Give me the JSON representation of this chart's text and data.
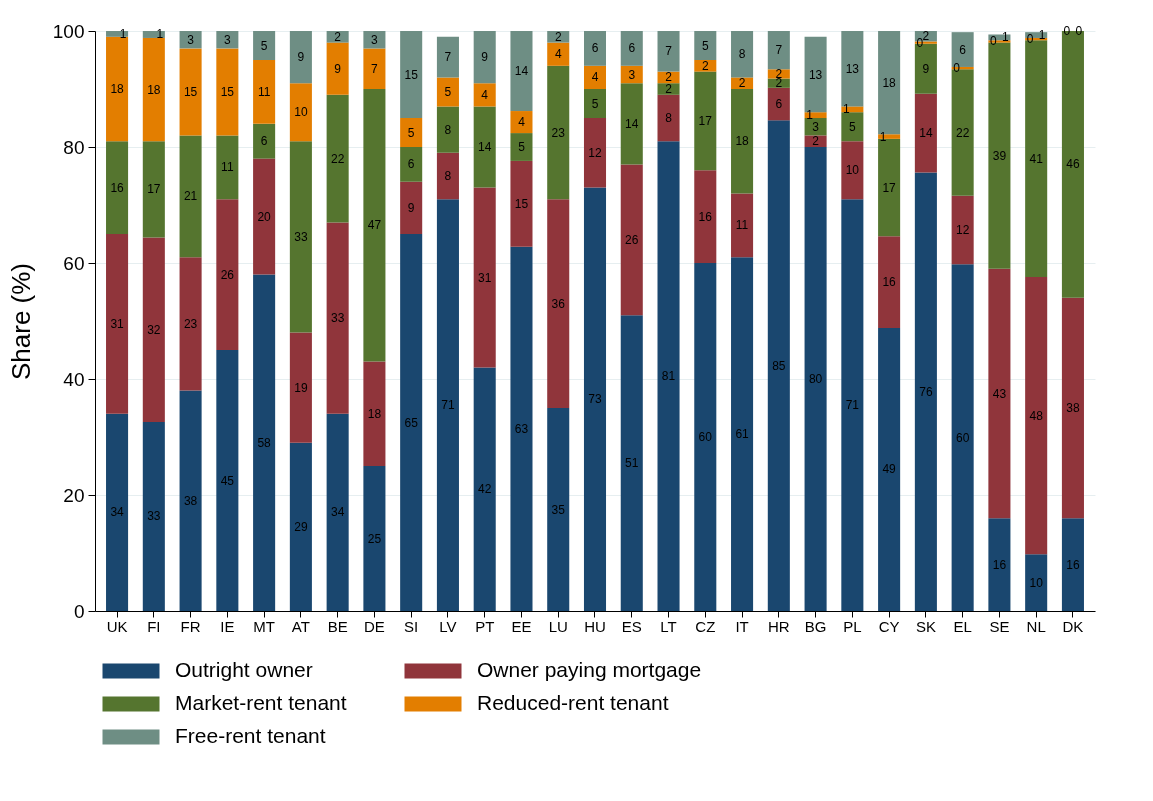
{
  "chart_data": {
    "type": "bar",
    "stacked": true,
    "ylabel": "Share (%)",
    "ylim": [
      0,
      100
    ],
    "yticks": [
      0,
      20,
      40,
      60,
      80,
      100
    ],
    "grid": "y",
    "legend": "bottom",
    "categories": [
      "UK",
      "FI",
      "FR",
      "IE",
      "MT",
      "AT",
      "BE",
      "DE",
      "SI",
      "LV",
      "PT",
      "EE",
      "LU",
      "HU",
      "ES",
      "LT",
      "CZ",
      "IT",
      "HR",
      "BG",
      "PL",
      "CY",
      "SK",
      "EL",
      "SE",
      "NL",
      "DK"
    ],
    "series": [
      {
        "name": "Outright owner",
        "color": "#1a476f",
        "values": [
          34,
          32.6,
          38,
          45,
          58,
          29,
          34,
          25,
          65,
          71,
          42,
          62.8,
          35,
          73,
          51,
          81,
          60,
          61,
          84.6,
          80,
          71,
          48.8,
          75.6,
          59.8,
          16,
          9.8,
          16
        ],
        "value_labels": [
          "34",
          "33",
          "38",
          "45",
          "58",
          "29",
          "34",
          "25",
          "65",
          "71",
          "42",
          "63",
          "35",
          "73",
          "51",
          "81",
          "60",
          "61",
          "85",
          "80",
          "71",
          "49",
          "76",
          "60",
          "16",
          "10",
          "16"
        ]
      },
      {
        "name": "Owner paying mortgage",
        "color": "#90353b",
        "values": [
          31,
          31.8,
          23,
          26,
          20,
          19,
          33,
          18,
          9,
          8,
          31,
          14.8,
          36,
          12,
          26,
          8,
          16,
          11,
          5.6,
          2,
          10,
          15.8,
          13.6,
          11.8,
          43,
          47.8,
          38
        ],
        "value_labels": [
          "31",
          "32",
          "23",
          "26",
          "20",
          "19",
          "33",
          "18",
          "9",
          "8",
          "31",
          "15",
          "36",
          "12",
          "26",
          "8",
          "16",
          "11",
          "6",
          "2",
          "10",
          "16",
          "14",
          "12",
          "43",
          "48",
          "38"
        ]
      },
      {
        "name": "Market-rent tenant",
        "color": "#55752f",
        "values": [
          16,
          16.6,
          21,
          11,
          6,
          33,
          22,
          47,
          6,
          8,
          14,
          4.8,
          23,
          5,
          14,
          2,
          17,
          18,
          1.6,
          3,
          5,
          16.8,
          8.6,
          21.8,
          39,
          40.8,
          46
        ],
        "value_labels": [
          "16",
          "17",
          "21",
          "11",
          "6",
          "33",
          "22",
          "47",
          "6",
          "8",
          "14",
          "5",
          "23",
          "5",
          "14",
          "2",
          "17",
          "18",
          "2",
          "3",
          "5",
          "17",
          "9",
          "22",
          "39",
          "41",
          "46"
        ]
      },
      {
        "name": "Reduced-rent tenant",
        "color": "#e37e00",
        "values": [
          18,
          17.8,
          15,
          15,
          11,
          10,
          9,
          7,
          5,
          5,
          4,
          3.8,
          4,
          4,
          3,
          2,
          2,
          2,
          1.6,
          1,
          1,
          0.8,
          0.4,
          0.4,
          0.4,
          0.4,
          0
        ],
        "value_labels": [
          "18",
          "18",
          "15",
          "15",
          "11",
          "10",
          "9",
          "7",
          "5",
          "5",
          "4",
          "4",
          "4",
          "4",
          "3",
          "2",
          "2",
          "2",
          "2",
          "1",
          "1",
          "1",
          "0",
          "0",
          "0",
          "0",
          "0"
        ]
      },
      {
        "name": "Free-rent tenant",
        "color": "#6e8e84",
        "values": [
          1,
          1.2,
          3,
          3,
          5,
          9,
          2,
          3,
          15,
          7,
          9,
          13.8,
          2,
          6,
          6,
          7,
          5,
          8,
          6.6,
          13,
          13,
          17.8,
          1.8,
          6,
          1,
          1,
          0
        ],
        "value_labels": [
          "1",
          "1",
          "3",
          "3",
          "5",
          "9",
          "2",
          "3",
          "15",
          "7",
          "9",
          "14",
          "2",
          "6",
          "6",
          "7",
          "5",
          "8",
          "7",
          "13",
          "13",
          "18",
          "2",
          "6",
          "1",
          "1",
          "0"
        ]
      }
    ]
  }
}
